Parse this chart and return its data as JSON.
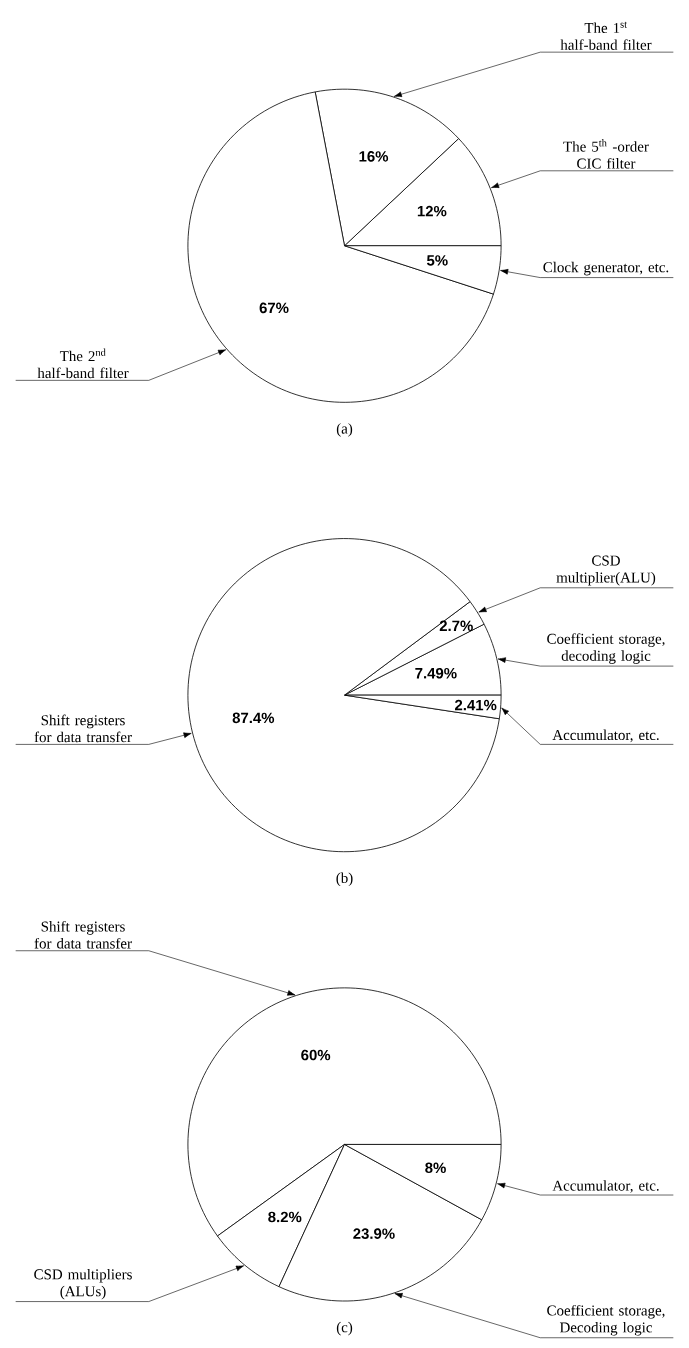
{
  "chart_data": [
    {
      "type": "pie",
      "categories": [
        "The 5$^{th}$ -order CIC filter",
        "The 1$^{st}$ half-band filter",
        "The 2$^{nd}$ half-band filter",
        "Clock generator, etc."
      ],
      "values": [
        12,
        16,
        67,
        5
      ],
      "value_labels": [
        "12%",
        "16%",
        "67%",
        "5%"
      ],
      "colors": [
        "#ffffff",
        "#ffffff",
        "#ffffff",
        "#ffffff"
      ],
      "annotations": [
        "(a)"
      ]
    },
    {
      "type": "pie",
      "categories": [
        "Coefficient storage, decoding logic",
        "CSD multiplier(ALU)",
        "Shift registers for data transfer",
        "Accumulator, etc."
      ],
      "values": [
        7.49,
        2.7,
        87.4,
        2.41
      ],
      "value_labels": [
        "7.49%",
        "2.7%",
        "87.4%",
        "2.41%"
      ],
      "colors": [
        "#ffffff",
        "#ffffff",
        "#ffffff",
        "#ffffff"
      ],
      "annotations": [
        "(b)"
      ]
    },
    {
      "type": "pie",
      "categories": [
        "Shift registers for data transfer",
        "CSD multipliers (ALUs)",
        "Coefficient storage, Decoding logic",
        "Accumulator, etc."
      ],
      "values": [
        60,
        8.2,
        23.9,
        8
      ],
      "value_labels": [
        "60%",
        "8.2%",
        "23.9%",
        "8%"
      ],
      "colors": [
        "#ffffff",
        "#ffffff",
        "#ffffff",
        "#ffffff"
      ],
      "annotations": [
        "(c)"
      ]
    }
  ]
}
